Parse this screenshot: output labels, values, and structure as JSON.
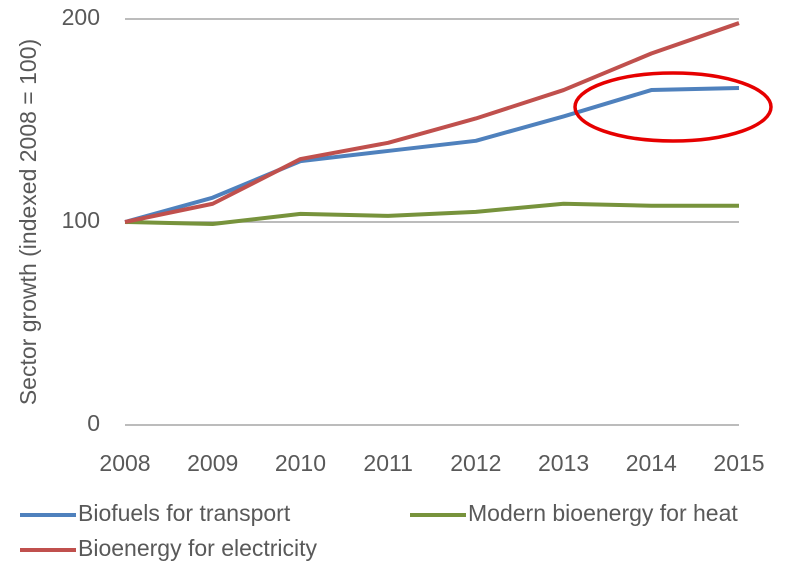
{
  "chart_data": {
    "type": "line",
    "y_label": "Sector growth (indexed 2008 = 100)",
    "categories": [
      "2008",
      "2009",
      "2010",
      "2011",
      "2012",
      "2013",
      "2014",
      "2015"
    ],
    "series": [
      {
        "name": "Biofuels for transport",
        "color": "#4f81bd",
        "values": [
          100,
          112,
          130,
          135,
          140,
          152,
          165,
          166
        ]
      },
      {
        "name": "Modern bioenergy for heat",
        "color": "#77933c",
        "values": [
          100,
          99,
          104,
          103,
          105,
          109,
          108,
          108
        ]
      },
      {
        "name": "Bioenergy for electricity",
        "color": "#c0504d",
        "values": [
          100,
          109,
          131,
          139,
          151,
          165,
          183,
          198
        ]
      }
    ],
    "ylim": [
      0,
      200
    ],
    "yticks": [
      0,
      100,
      200
    ],
    "grid": true,
    "legend": "bottom"
  }
}
